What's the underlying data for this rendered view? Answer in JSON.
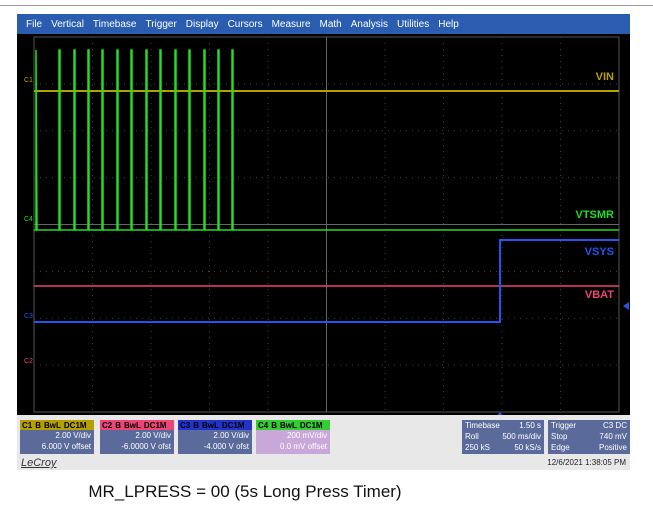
{
  "menu": [
    "File",
    "Vertical",
    "Timebase",
    "Trigger",
    "Display",
    "Cursors",
    "Measure",
    "Math",
    "Analysis",
    "Utilities",
    "Help"
  ],
  "screen": {
    "trace_labels": [
      {
        "text": "VIN",
        "color": "#b5a000"
      },
      {
        "text": "VTSMR",
        "color": "#22dd22"
      },
      {
        "text": "VSYS",
        "color": "#2255ee"
      },
      {
        "text": "VBAT",
        "color": "#ee4477"
      }
    ],
    "channel_markers": [
      "C1",
      "C4",
      "C3",
      "C2"
    ]
  },
  "channels": [
    {
      "name": "C1",
      "tags": [
        "B",
        "BwL",
        "DC1M"
      ],
      "scale": "2.00 V/div",
      "offset": "6.000 V offset"
    },
    {
      "name": "C2",
      "tags": [
        "B",
        "BwL",
        "DC1M"
      ],
      "scale": "2.00 V/div",
      "offset": "-6.0000 V ofst"
    },
    {
      "name": "C3",
      "tags": [
        "B",
        "BwL",
        "DC1M"
      ],
      "scale": "2.00 V/div",
      "offset": "-4.000 V ofst"
    },
    {
      "name": "C4",
      "tags": [
        "B",
        "BwL",
        "DC1M"
      ],
      "scale": "200 mV/div",
      "offset": "0.0 mV offset"
    }
  ],
  "timebase": {
    "rows": [
      [
        "Timebase",
        "1.50 s"
      ],
      [
        "Roll",
        "500 ms/div"
      ],
      [
        "250 kS",
        "50 kS/s"
      ]
    ]
  },
  "trigger": {
    "rows": [
      [
        "Trigger",
        "C3 DC"
      ],
      [
        "Stop",
        "740 mV"
      ],
      [
        "Edge",
        "Positive"
      ]
    ]
  },
  "brand": "LeCroy",
  "timestamp": "12/6/2021 1:38:05 PM",
  "caption": "MR_LPRESS = 00 (5s Long Press Timer)"
}
